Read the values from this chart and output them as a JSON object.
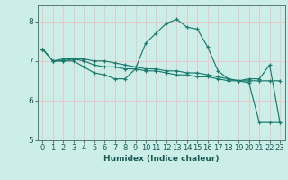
{
  "title": "",
  "xlabel": "Humidex (Indice chaleur)",
  "bg_color": "#cceee8",
  "plot_bg_color": "#cceee8",
  "line_color": "#1a7a6e",
  "grid_color": "#e8c8c8",
  "xlim": [
    -0.5,
    23.5
  ],
  "ylim": [
    5.0,
    8.4
  ],
  "yticks": [
    5,
    6,
    7,
    8
  ],
  "xticks": [
    0,
    1,
    2,
    3,
    4,
    5,
    6,
    7,
    8,
    9,
    10,
    11,
    12,
    13,
    14,
    15,
    16,
    17,
    18,
    19,
    20,
    21,
    22,
    23
  ],
  "series": [
    [
      7.3,
      7.0,
      7.0,
      7.0,
      6.85,
      6.7,
      6.65,
      6.55,
      6.55,
      6.8,
      7.45,
      7.7,
      7.95,
      8.05,
      7.85,
      7.8,
      7.35,
      6.75,
      6.55,
      6.5,
      6.55,
      6.55,
      6.9,
      5.45
    ],
    [
      7.3,
      7.0,
      7.0,
      7.05,
      7.0,
      6.9,
      6.85,
      6.85,
      6.8,
      6.8,
      6.75,
      6.75,
      6.7,
      6.65,
      6.65,
      6.6,
      6.6,
      6.55,
      6.5,
      6.5,
      6.45,
      5.45,
      5.45,
      5.45
    ],
    [
      7.3,
      7.0,
      7.05,
      7.05,
      7.05,
      7.0,
      7.0,
      6.95,
      6.9,
      6.85,
      6.8,
      6.8,
      6.75,
      6.75,
      6.7,
      6.7,
      6.65,
      6.6,
      6.55,
      6.5,
      6.5,
      6.5,
      6.5,
      6.5
    ]
  ],
  "tick_fontsize": 6.0,
  "xlabel_fontsize": 6.5
}
